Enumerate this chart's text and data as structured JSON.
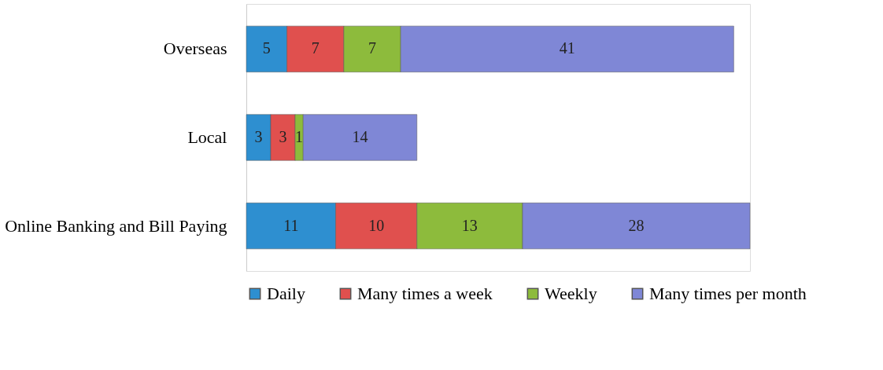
{
  "chart_data": {
    "type": "bar",
    "orientation": "horizontal",
    "stacked": true,
    "data_labels": true,
    "legend": "bottom",
    "categories": [
      "Overseas",
      "Local",
      "Online Banking and Bill Paying"
    ],
    "series": [
      {
        "name": "Daily",
        "color": "#2e8fd0",
        "values": [
          5,
          3,
          11
        ]
      },
      {
        "name": "Many times a week",
        "color": "#e0504e",
        "values": [
          7,
          3,
          10
        ]
      },
      {
        "name": "Weekly",
        "color": "#8dbb3c",
        "values": [
          7,
          1,
          13
        ]
      },
      {
        "name": "Many times per month",
        "color": "#7f87d6",
        "values": [
          41,
          14,
          28
        ]
      }
    ]
  }
}
